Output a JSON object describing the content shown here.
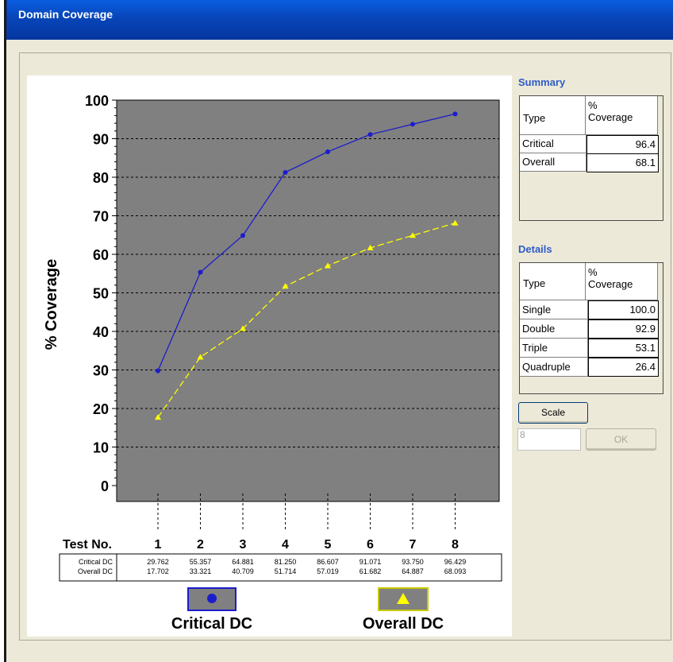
{
  "window": {
    "title": "Domain Coverage"
  },
  "summary": {
    "label": "Summary",
    "header_type": "Type",
    "header_cov_1": "%",
    "header_cov_2": "Coverage",
    "rows": [
      {
        "type": "Critical",
        "value": "96.4"
      },
      {
        "type": "Overall",
        "value": "68.1"
      }
    ]
  },
  "details": {
    "label": "Details",
    "header_type": "Type",
    "header_cov_1": "%",
    "header_cov_2": "Coverage",
    "rows": [
      {
        "type": "Single",
        "value": "100.0"
      },
      {
        "type": "Double",
        "value": "92.9"
      },
      {
        "type": "Triple",
        "value": "53.1"
      },
      {
        "type": "Quadruple",
        "value": "26.4"
      }
    ]
  },
  "controls": {
    "scale_label": "Scale",
    "scale_value": "8",
    "ok_label": "OK"
  },
  "chart_data": {
    "type": "line",
    "ylabel": "% Coverage",
    "xlabel": "Test No.",
    "ylim": [
      0,
      100
    ],
    "yticks": [
      "0",
      "10",
      "20",
      "30",
      "40",
      "50",
      "60",
      "70",
      "80",
      "90",
      "100"
    ],
    "x": [
      "1",
      "2",
      "3",
      "4",
      "5",
      "6",
      "7",
      "8"
    ],
    "series": [
      {
        "name": "Critical DC",
        "table_label": "Critical DC",
        "color": "#1c1ccc",
        "values": [
          29.762,
          55.357,
          64.881,
          81.25,
          86.607,
          91.071,
          93.75,
          96.429
        ],
        "labels": [
          "29.762",
          "55.357",
          "64.881",
          "81.250",
          "86.607",
          "91.071",
          "93.750",
          "96.429"
        ]
      },
      {
        "name": "Overall DC",
        "table_label": "Overall DC",
        "color": "#ffff00",
        "values": [
          17.702,
          33.321,
          40.709,
          51.714,
          57.019,
          61.682,
          64.887,
          68.093
        ],
        "labels": [
          "17.702",
          "33.321",
          "40.709",
          "51.714",
          "57.019",
          "61.682",
          "64.887",
          "68.093"
        ]
      }
    ],
    "plot_background": "#808080",
    "grid": true,
    "legend": "bottom"
  }
}
